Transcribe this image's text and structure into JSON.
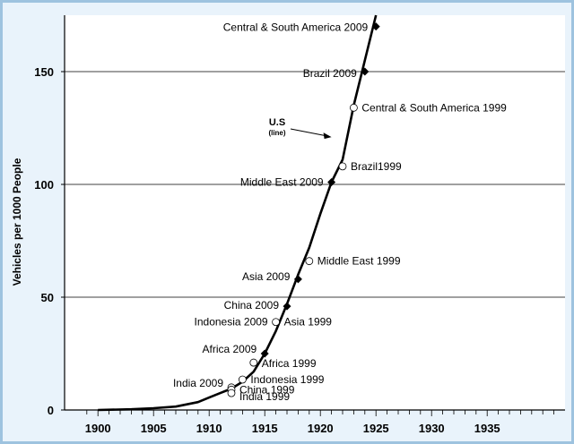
{
  "chart_data": {
    "type": "line",
    "title": "",
    "xlabel": "",
    "ylabel": "Vehicles per 1000 People",
    "xlim": [
      1897,
      1942
    ],
    "ylim": [
      0,
      175
    ],
    "xticks": [
      1900,
      1905,
      1910,
      1915,
      1920,
      1925,
      1930,
      1935
    ],
    "yticks": [
      0,
      50,
      100,
      150
    ],
    "grid": "horizontal",
    "colors": {
      "background": "#e9f3fb",
      "border": "#9ec3df",
      "line": "#000000",
      "grid": "#000000"
    },
    "series": [
      {
        "x": [
          1900,
          1903,
          1905,
          1907,
          1909,
          1910,
          1911,
          1912,
          1913,
          1914,
          1915,
          1916,
          1917,
          1918,
          1919,
          1920,
          1921,
          1922,
          1923,
          1924,
          1925
        ],
        "y": [
          0,
          0.3,
          0.8,
          1.5,
          3.5,
          5.5,
          7.5,
          9.5,
          12.5,
          17,
          25,
          35,
          47,
          60,
          72,
          87,
          101,
          111,
          135,
          155,
          175
        ]
      }
    ],
    "line_label": {
      "text": "U.S",
      "subtext": "(line)",
      "arrow_to_x": 1921,
      "arrow_to_y": 121
    },
    "points": [
      {
        "label": "Central & South America 2009",
        "x": 1925,
        "y": 170,
        "marker": "diamond",
        "side": "left"
      },
      {
        "label": "Brazil 2009",
        "x": 1924,
        "y": 150,
        "marker": "diamond",
        "side": "left"
      },
      {
        "label": "Central & South America 1999",
        "x": 1923,
        "y": 134,
        "marker": "circle",
        "side": "right"
      },
      {
        "label": "Brazil1999",
        "x": 1922,
        "y": 108,
        "marker": "circle",
        "side": "right"
      },
      {
        "label": "Middle East 2009",
        "x": 1921,
        "y": 101,
        "marker": "diamond",
        "side": "left"
      },
      {
        "label": "Middle East 1999",
        "x": 1919,
        "y": 66,
        "marker": "circle",
        "side": "right"
      },
      {
        "label": "Asia 2009",
        "x": 1918,
        "y": 58,
        "marker": "diamond",
        "side": "left"
      },
      {
        "label": "China 2009",
        "x": 1917,
        "y": 46,
        "marker": "diamond",
        "side": "left"
      },
      {
        "label": "Indonesia 2009",
        "x": 1916,
        "y": 39,
        "marker": "circle",
        "side": "left"
      },
      {
        "label": "Asia 1999",
        "x": 1916,
        "y": 39,
        "marker": "none",
        "side": "right"
      },
      {
        "label": "Africa 2009",
        "x": 1915,
        "y": 25,
        "marker": "diamond",
        "side": "left"
      },
      {
        "label": "Africa 1999",
        "x": 1914,
        "y": 21,
        "marker": "circle",
        "side": "right"
      },
      {
        "label": "Indonesia 1999",
        "x": 1913,
        "y": 13.5,
        "marker": "circle",
        "side": "right"
      },
      {
        "label": "India 2009",
        "x": 1912,
        "y": 10,
        "marker": "circle",
        "side": "left"
      },
      {
        "label": "China 1999",
        "x": 1912,
        "y": 9,
        "marker": "circle",
        "side": "right"
      },
      {
        "label": "India 1999",
        "x": 1912,
        "y": 7.5,
        "marker": "circle",
        "side": "right"
      }
    ]
  }
}
